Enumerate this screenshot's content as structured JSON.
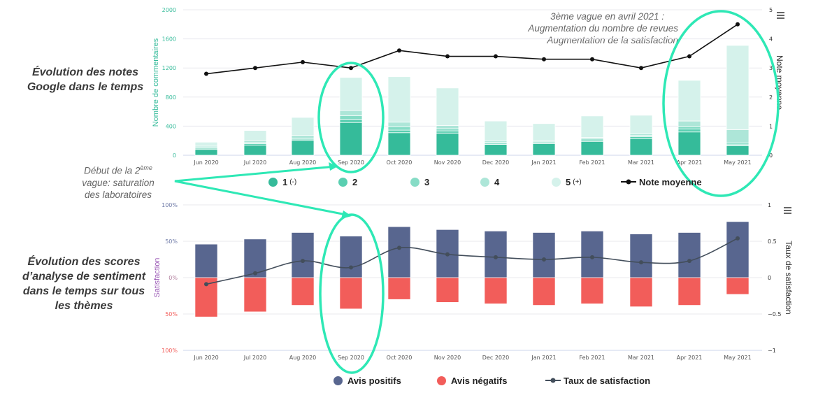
{
  "side_titles": {
    "top": "Évolution des notes Google dans le temps",
    "bottom": "Évolution des scores d’analyse de sentiment dans le temps sur tous les thèmes"
  },
  "annotations": {
    "second_wave_line1": "Début de la 2",
    "second_wave_sup": "ème",
    "second_wave_line2": "vague: saturation",
    "second_wave_line3": "des laboratoires",
    "third_wave_line1": "3ème vague en avril 2021 :",
    "third_wave_line2": "Augmentation du nombre de revues",
    "third_wave_line3": "Augmentation de la satisfaction"
  },
  "colors": {
    "r1": "#35bb9a",
    "r2": "#5acfb1",
    "r3": "#86dcc6",
    "r4": "#ade6d8",
    "r5": "#d5f2eb",
    "line": "#111111",
    "positive": "#58668f",
    "negative": "#f25d5a",
    "sat_line": "#434e5b",
    "highlight": "#2ee8b5",
    "grid": "#e8e8ee",
    "left_axis_top": "#35bb9a",
    "satisfaction_title": "#9b59b6"
  },
  "top_legend": {
    "r1": "1",
    "r1_sub": "(-)",
    "r2": "2",
    "r3": "3",
    "r4": "4",
    "r5": "5",
    "r5_sub": "(+)",
    "line": "Note moyenne"
  },
  "bottom_legend": {
    "positive": "Avis positifs",
    "negative": "Avis négatifs",
    "line": "Taux de satisfaction"
  },
  "chart_data": [
    {
      "type": "bar",
      "stacked": true,
      "title": "Évolution des notes Google dans le temps",
      "categories": [
        "Jun 2020",
        "Jul 2020",
        "Aug 2020",
        "Sep 2020",
        "Oct 2020",
        "Nov 2020",
        "Dec 2020",
        "Jan 2021",
        "Feb 2021",
        "Mar 2021",
        "Apr 2021",
        "May 2021"
      ],
      "ylabel": "Nombre de commentaires",
      "y2label": "Note moyenne",
      "ylim": [
        0,
        2000
      ],
      "y2lim": [
        0,
        5
      ],
      "yticks": [
        "0",
        "400",
        "800",
        "1200",
        "1600",
        "2000"
      ],
      "y2ticks": [
        "0",
        "1",
        "2",
        "3",
        "4",
        "5"
      ],
      "series": [
        {
          "name": "1 (-)",
          "values": [
            80,
            140,
            205,
            450,
            310,
            305,
            150,
            160,
            190,
            225,
            320,
            130
          ]
        },
        {
          "name": "2",
          "values": [
            15,
            20,
            15,
            45,
            35,
            30,
            15,
            15,
            20,
            30,
            40,
            15
          ]
        },
        {
          "name": "3",
          "values": [
            15,
            15,
            15,
            50,
            50,
            30,
            15,
            15,
            15,
            20,
            40,
            25
          ]
        },
        {
          "name": "4",
          "values": [
            15,
            25,
            40,
            70,
            60,
            45,
            20,
            15,
            20,
            20,
            70,
            180
          ]
        },
        {
          "name": "5 (+)",
          "values": [
            55,
            140,
            245,
            455,
            625,
            515,
            270,
            230,
            295,
            255,
            560,
            1160
          ]
        },
        {
          "name": "Note moyenne",
          "type": "line",
          "axis": "right",
          "values": [
            2.8,
            3.0,
            3.2,
            3.0,
            3.6,
            3.4,
            3.4,
            3.3,
            3.3,
            3.0,
            3.4,
            4.5
          ]
        }
      ],
      "legend_position": "bottom",
      "grid": true
    },
    {
      "type": "bar",
      "title": "Évolution des scores d’analyse de sentiment dans le temps sur tous les thèmes",
      "categories": [
        "Jun 2020",
        "Jul 2020",
        "Aug 2020",
        "Sep 2020",
        "Oct 2020",
        "Nov 2020",
        "Dec 2020",
        "Jan 2021",
        "Feb 2021",
        "Mar 2021",
        "Apr 2021",
        "May 2021"
      ],
      "ylabel": "Satisfaction",
      "y2label": "Taux de satisfaction",
      "ylim": [
        -100,
        100
      ],
      "y2lim": [
        -1,
        1
      ],
      "yticks": [
        "100%",
        "50%",
        "0%",
        "50%",
        "100%"
      ],
      "y2ticks": [
        "1",
        "0.5",
        "0",
        "−0.5",
        "−1"
      ],
      "series": [
        {
          "name": "Avis positifs",
          "values": [
            46,
            53,
            62,
            57,
            70,
            66,
            64,
            62,
            64,
            60,
            62,
            77
          ]
        },
        {
          "name": "Avis négatifs",
          "values": [
            -54,
            -47,
            -38,
            -43,
            -30,
            -34,
            -36,
            -38,
            -36,
            -40,
            -38,
            -23
          ]
        },
        {
          "name": "Taux de satisfaction",
          "type": "line",
          "axis": "right",
          "values": [
            -0.09,
            0.06,
            0.23,
            0.14,
            0.41,
            0.32,
            0.28,
            0.25,
            0.28,
            0.21,
            0.23,
            0.54
          ]
        }
      ],
      "legend_position": "bottom",
      "grid": true
    }
  ]
}
